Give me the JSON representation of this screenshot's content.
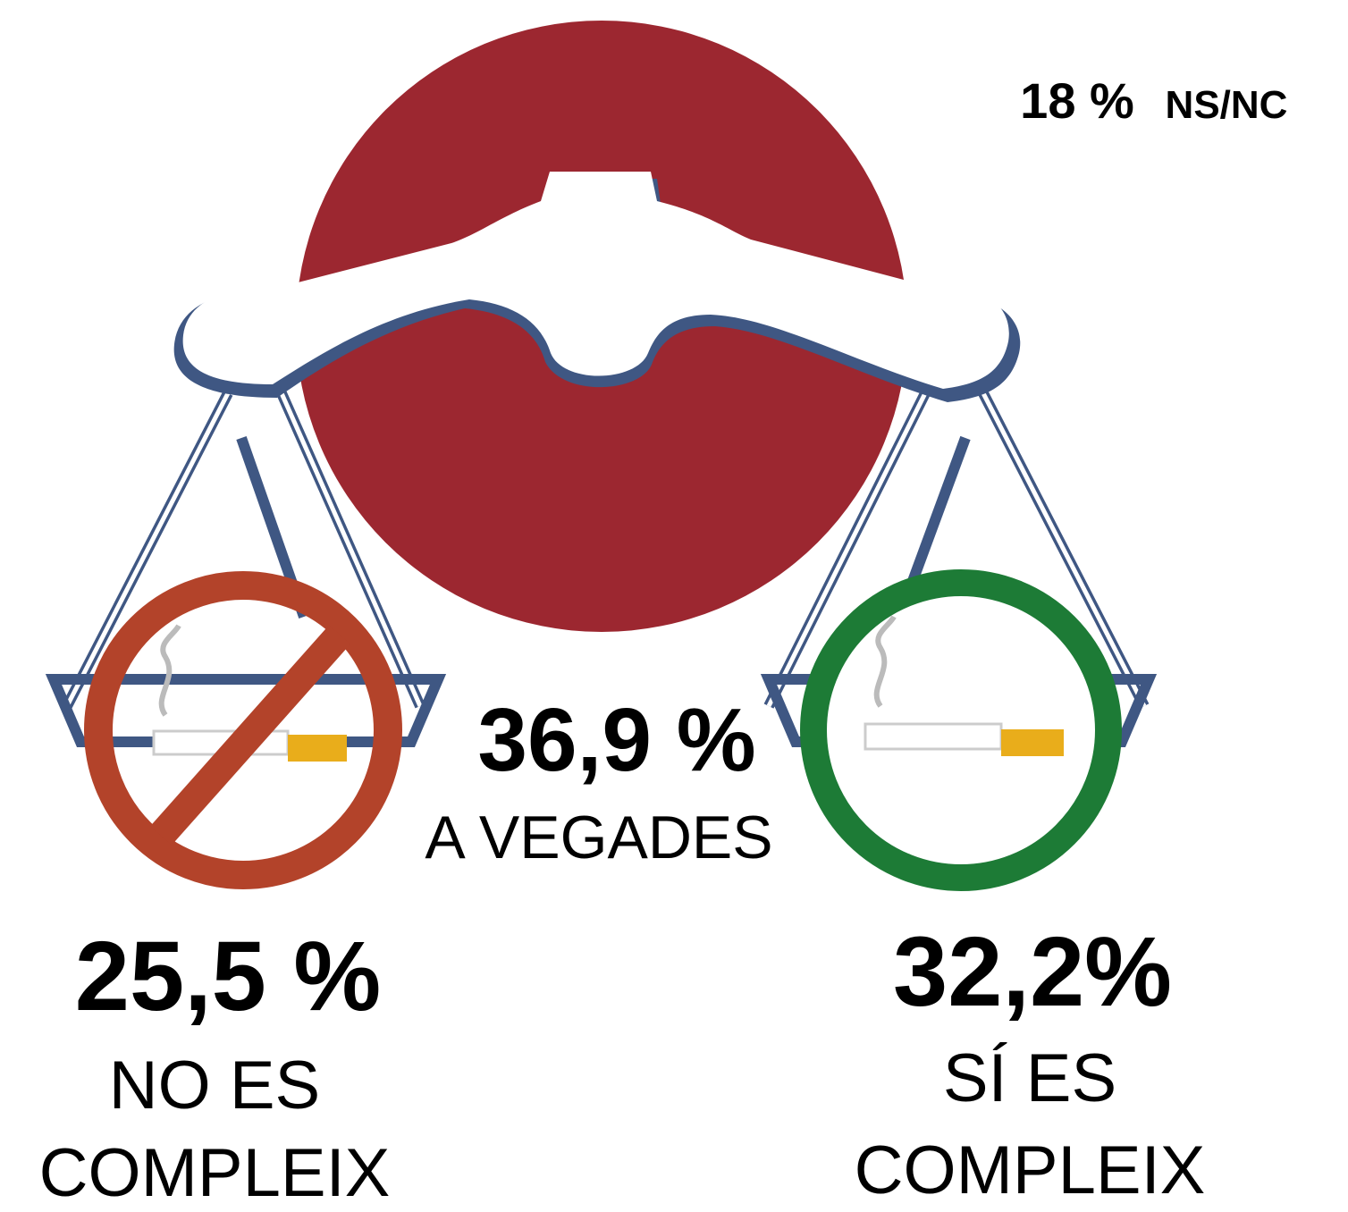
{
  "nsnc": {
    "value": "18 %",
    "label": "NS/NC"
  },
  "center": {
    "value": "36,9 %",
    "label": "A VEGADES"
  },
  "left": {
    "value": "25,5 %",
    "lines": [
      "NO ES",
      "COMPLEIX"
    ]
  },
  "right": {
    "value": "32,2%",
    "lines": [
      "SÍ ES",
      "COMPLEIX"
    ]
  }
}
